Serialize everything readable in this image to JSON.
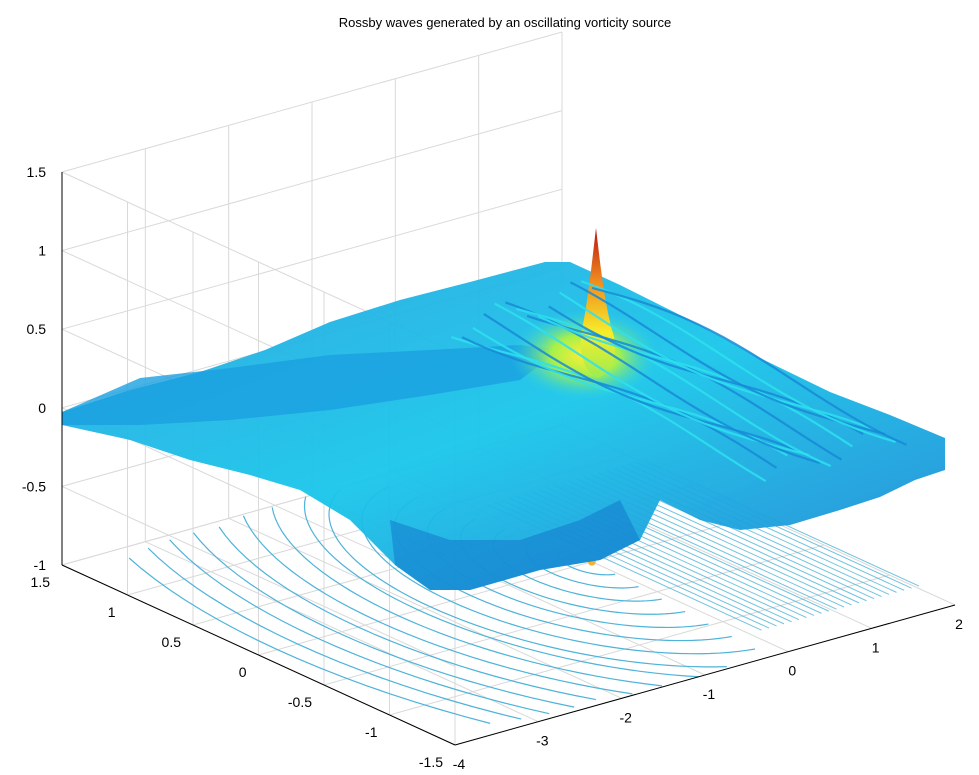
{
  "chart_data": {
    "type": "surface",
    "title": "Rossby waves generated by an oscillating vorticity source",
    "xlabel": "",
    "ylabel": "",
    "zlabel": "",
    "x_range": [
      -4,
      2
    ],
    "y_range": [
      -1.5,
      1.5
    ],
    "z_range": [
      -1,
      1.5
    ],
    "x_ticks": [
      "-4",
      "-3",
      "-2",
      "-1",
      "0",
      "1",
      "2"
    ],
    "y_ticks": [
      "-1.5",
      "-1",
      "-0.5",
      "0",
      "0.5",
      "1",
      "1.5"
    ],
    "z_ticks": [
      "-1",
      "-0.5",
      "0",
      "0.5",
      "1",
      "1.5"
    ],
    "grid": true,
    "colormap": "jet",
    "contour_projection": "bottom",
    "peak": {
      "x": 0,
      "y": 0,
      "z": 1.2
    },
    "colors": {
      "low": "#1e90d8",
      "mid": "#00e6ee",
      "high": "#ffff00",
      "peak": "#c01010",
      "contour": "#4fb3d9"
    }
  }
}
